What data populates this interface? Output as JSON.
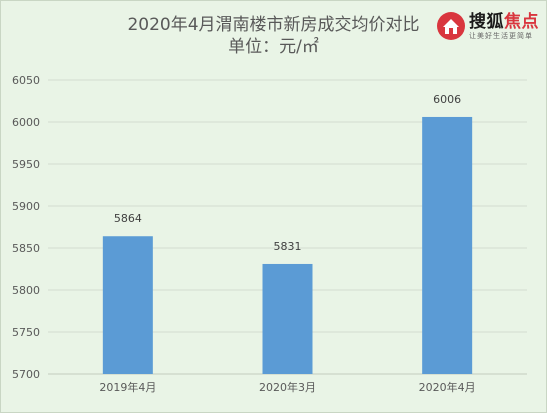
{
  "chart_data": {
    "type": "bar",
    "title": "2020年4月渭南楼市新房成交均价对比",
    "subtitle": "单位：元/㎡",
    "categories": [
      "2019年4月",
      "2020年3月",
      "2020年4月"
    ],
    "values": [
      5864,
      5831,
      6006
    ],
    "data_labels": [
      "5864",
      "5831",
      "6006"
    ],
    "ylim": [
      5700,
      6050
    ],
    "yticks": [
      "5700",
      "5750",
      "5800",
      "5850",
      "5900",
      "5950",
      "6000",
      "6050"
    ],
    "grid": true,
    "legend": "none",
    "colors": {
      "bar": "#5b9bd5",
      "grid": "#d3dbd0",
      "axis_text": "#595959",
      "background": "#e9f4e6"
    }
  },
  "logo": {
    "name_main": "搜狐",
    "name_highlight": "焦点",
    "tagline": "让美好生活更简单"
  }
}
